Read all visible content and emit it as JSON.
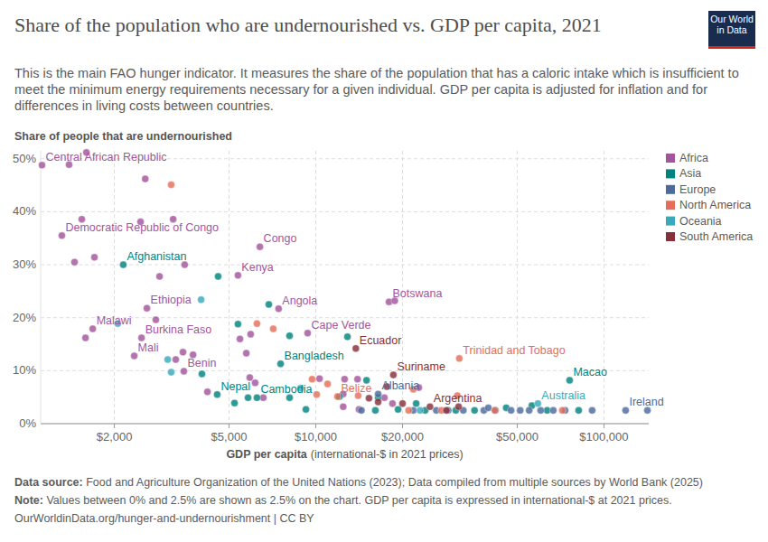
{
  "chart_data": {
    "type": "scatter",
    "title": "Share of the population who are undernourished vs. GDP per capita, 2021",
    "subtitle": "This is the main FAO hunger indicator. It measures the share of the population that has a caloric intake which is insufficient to meet the minimum energy requirements necessary for a given individual. GDP per capita is adjusted for inflation and for differences in living costs between countries.",
    "logo": "Our World in Data",
    "ylabel": "Share of people that are undernourished",
    "xlabel": "GDP per capita",
    "xlabel_unit": "(international-$ in 2021 prices)",
    "footer": [
      {
        "label": "Data source:",
        "text": "Food and Agriculture Organization of the United Nations (2023); Data compiled from multiple sources by World Bank (2025)"
      },
      {
        "label": "Note:",
        "text": "Values between 0% and 2.5% are shown as 2.5% on the chart. GDP per capita is expressed in international-$ at 2021 prices."
      },
      {
        "label": "",
        "text": "OurWorldinData.org/hunger-and-undernourishment | CC BY"
      }
    ],
    "log": "x",
    "grid": true,
    "legend": "right",
    "xlim": [
      1110,
      143000
    ],
    "ylim": [
      0,
      51.5
    ],
    "xticks": [
      {
        "value": 2000,
        "label": "$2,000"
      },
      {
        "value": 5000,
        "label": "$5,000"
      },
      {
        "value": 10000,
        "label": "$10,000"
      },
      {
        "value": 20000,
        "label": "$20,000"
      },
      {
        "value": 50000,
        "label": "$50,000"
      },
      {
        "value": 100000,
        "label": "$100,000"
      }
    ],
    "yticks": [
      {
        "value": 0,
        "label": "0%"
      },
      {
        "value": 10,
        "label": "10%"
      },
      {
        "value": 20,
        "label": "20%"
      },
      {
        "value": 30,
        "label": "30%"
      },
      {
        "value": 40,
        "label": "40%"
      },
      {
        "value": 50,
        "label": "50%"
      }
    ],
    "series": [
      {
        "name": "Africa",
        "color": "#a2559c",
        "x": [
          1122,
          1393,
          1600,
          2560,
          1542,
          2466,
          3200,
          1315,
          1455,
          1706,
          6397,
          3508,
          5370,
          2870,
          2594,
          7430,
          2786,
          1683,
          1588,
          2485,
          2344,
          3461,
          3750,
          3485,
          3266,
          4207,
          9370,
          5455,
          5943,
          5740,
          5900,
          6160,
          6577,
          17950,
          18800,
          10300,
          12590,
          13960,
          12450,
          22770,
          18460,
          14130,
          17300,
          12450
        ],
        "values": [
          48.8,
          48.9,
          51.2,
          46.2,
          38.6,
          38.1,
          38.6,
          35.5,
          30.5,
          31.4,
          33.4,
          30.0,
          28.0,
          27.8,
          21.8,
          21.7,
          19.6,
          17.9,
          16.2,
          16.2,
          12.8,
          13.5,
          13.0,
          9.9,
          12.1,
          6.0,
          17.1,
          16.0,
          16.9,
          13.3,
          8.7,
          7.7,
          4.9,
          23.0,
          23.2,
          8.5,
          8.4,
          8.4,
          3.2,
          6.8,
          3.8,
          2.7,
          4.9,
          5.6
        ],
        "labels": [
          "Central African Republic",
          null,
          null,
          null,
          null,
          null,
          null,
          "Democratic Republic of Congo",
          null,
          null,
          "Congo",
          null,
          "Kenya",
          null,
          "Ethiopia",
          "Angola",
          null,
          "Malawi",
          null,
          "Burkina Faso",
          "Mali",
          null,
          null,
          "Benin",
          null,
          null,
          "Cape Verde",
          null,
          null,
          null,
          null,
          null,
          null,
          "Botswana",
          null,
          null,
          null,
          null,
          null,
          null,
          null,
          null,
          null,
          null
        ]
      },
      {
        "name": "Asia",
        "color": "#00847e",
        "x": [
          2148,
          4584,
          6870,
          5370,
          8110,
          12880,
          7550,
          4027,
          4550,
          5224,
          5820,
          6250,
          8110,
          9240,
          12080,
          15000,
          16460,
          19300,
          23960,
          30600,
          35560,
          45800,
          56200,
          76000,
          63500,
          81700,
          16100,
          22300
        ],
        "values": [
          30.0,
          27.8,
          22.5,
          18.8,
          16.6,
          16.4,
          11.3,
          9.4,
          5.5,
          3.9,
          4.9,
          4.9,
          4.9,
          2.7,
          5.1,
          8.2,
          4.9,
          2.7,
          2.5,
          2.5,
          2.5,
          3.0,
          3.4,
          8.2,
          2.5,
          2.5,
          2.5,
          3.8
        ],
        "labels": [
          "Afghanistan",
          null,
          null,
          null,
          null,
          null,
          "Bangladesh",
          null,
          "Nepal",
          null,
          null,
          "Cambodia",
          null,
          null,
          null,
          null,
          null,
          null,
          null,
          null,
          null,
          null,
          null,
          "Macao",
          null,
          null,
          null,
          null
        ]
      },
      {
        "name": "Europe",
        "color": "#4c6a9c",
        "x": [
          16460,
          14400,
          21800,
          26200,
          28800,
          32500,
          38300,
          42000,
          47600,
          51200,
          55000,
          60300,
          66700,
          73300,
          118900,
          141500,
          91000,
          39700
        ],
        "values": [
          5.6,
          2.5,
          2.5,
          2.5,
          2.5,
          2.5,
          2.5,
          2.5,
          2.5,
          2.5,
          2.5,
          2.5,
          2.5,
          2.5,
          2.5,
          2.5,
          2.5,
          3.0
        ],
        "labels": [
          "Albania",
          null,
          null,
          null,
          null,
          null,
          null,
          null,
          null,
          null,
          null,
          null,
          null,
          null,
          "Ireland",
          null,
          null,
          null
        ]
      },
      {
        "name": "North America",
        "color": "#e56e5a",
        "x": [
          3150,
          6250,
          7120,
          9710,
          10990,
          11890,
          10070,
          14030,
          31480,
          21800,
          31000,
          21000,
          27300,
          71700,
          41800
        ],
        "values": [
          45.1,
          18.9,
          17.9,
          8.4,
          7.5,
          5.1,
          5.5,
          5.3,
          12.3,
          6.5,
          5.3,
          2.5,
          2.5,
          2.5,
          2.5
        ],
        "labels": [
          null,
          null,
          null,
          null,
          null,
          "Belize",
          null,
          null,
          "Trinidad and Tobago",
          null,
          null,
          null,
          null,
          null,
          null
        ]
      },
      {
        "name": "Oceania",
        "color": "#38aaba",
        "x": [
          4000,
          2056,
          3063,
          3150,
          8850,
          59000,
          23000
        ],
        "values": [
          23.4,
          18.9,
          12.1,
          9.7,
          6.7,
          3.8,
          2.5
        ],
        "labels": [
          null,
          null,
          null,
          null,
          null,
          "Australia",
          null
        ]
      },
      {
        "name": "South America",
        "color": "#883039",
        "x": [
          13770,
          18590,
          17650,
          15300,
          24900,
          28400,
          31300,
          16460,
          20000
        ],
        "values": [
          14.2,
          9.2,
          7.0,
          4.8,
          3.2,
          2.5,
          3.2,
          4.1,
          3.8
        ],
        "labels": [
          "Ecuador",
          "Suriname",
          null,
          null,
          "Argentina",
          null,
          null,
          null,
          null
        ]
      }
    ]
  }
}
